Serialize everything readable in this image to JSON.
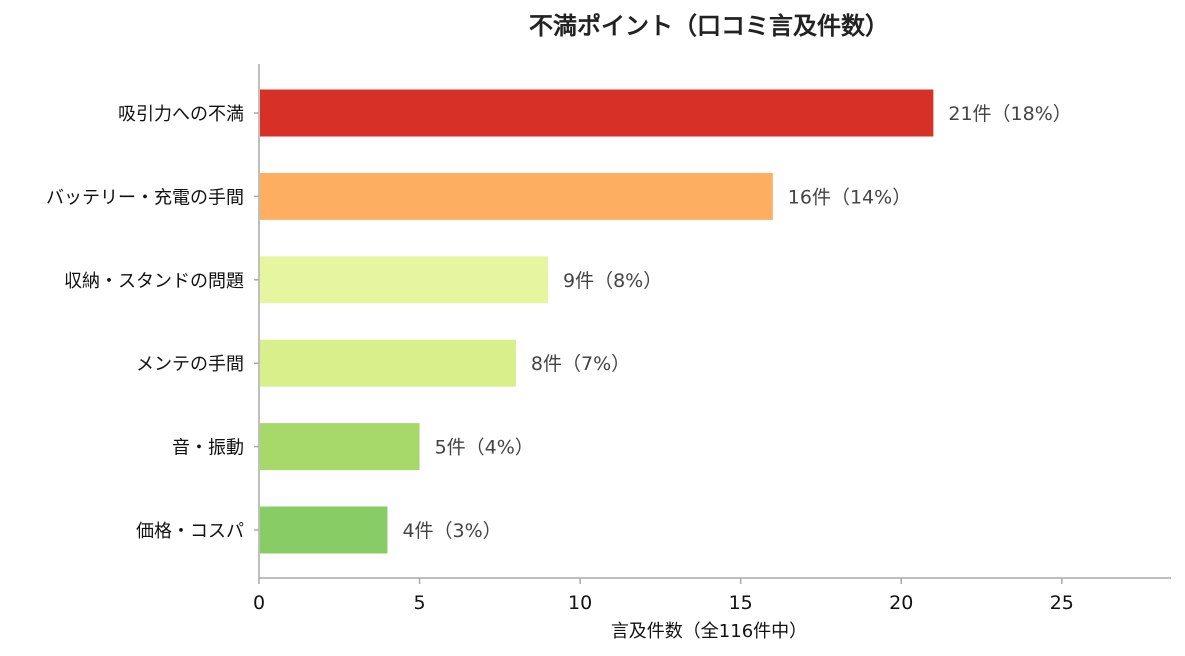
{
  "chart_data": {
    "type": "bar",
    "orientation": "horizontal",
    "title": "不満ポイント（口コミ言及件数）",
    "xlabel": "言及件数（全116件中）",
    "ylabel": "",
    "categories": [
      "吸引力への不満",
      "バッテリー・充電の手間",
      "収納・スタンドの問題",
      "メンテの手間",
      "音・振動",
      "価格・コスパ"
    ],
    "values": [
      21,
      16,
      9,
      8,
      5,
      4
    ],
    "data_labels": [
      "21件（18%）",
      "16件（14%）",
      "9件（8%）",
      "8件（7%）",
      "5件（4%）",
      "4件（3%）"
    ],
    "colors": [
      "#d73027",
      "#fdae61",
      "#e6f5a0",
      "#d9ef8b",
      "#a6d96a",
      "#88cc66"
    ],
    "xlim": [
      0,
      28.4
    ],
    "xticks": [
      0,
      5,
      10,
      15,
      20,
      25
    ],
    "grid": false,
    "legend": "none"
  }
}
